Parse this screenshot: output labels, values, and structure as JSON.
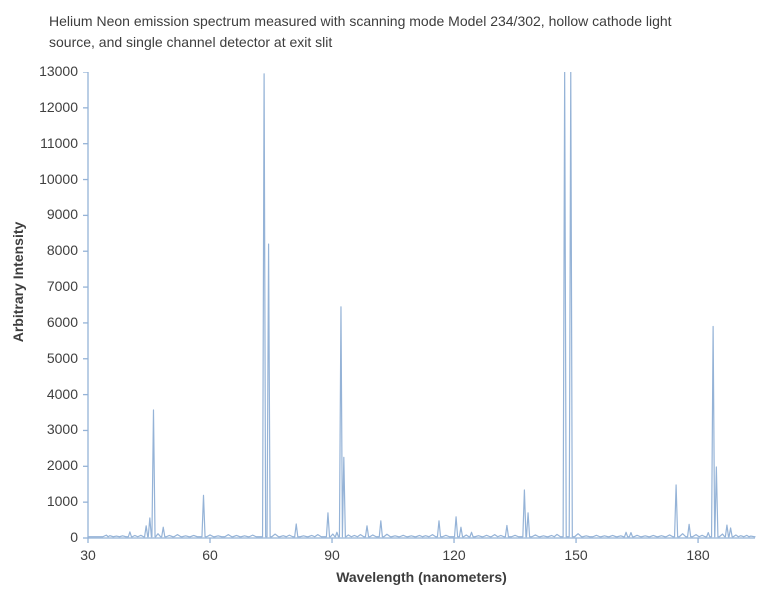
{
  "title": "Helium Neon emission spectrum measured with scanning mode Model 234/302, hollow cathode light source, and single channel detector at exit slit",
  "chart_data": {
    "type": "line",
    "title": "Helium Neon emission spectrum measured with scanning mode Model 234/302, hollow cathode light source, and single channel detector at exit slit",
    "xlabel": "Wavelength (nanometers)",
    "ylabel": "Arbitrary Intensity",
    "xlim": [
      30,
      194
    ],
    "ylim": [
      0,
      13000
    ],
    "x_ticks": [
      30,
      60,
      90,
      120,
      150,
      180
    ],
    "y_ticks": [
      0,
      1000,
      2000,
      3000,
      4000,
      5000,
      6000,
      7000,
      8000,
      9000,
      10000,
      11000,
      12000,
      13000
    ],
    "grid": "off",
    "legend": "none",
    "line_color": "#95B3D7",
    "axis_color": "#95B3D7",
    "text_color": "#3f3f3f",
    "baseline_intensity": 35,
    "clipped_peaks_note": "the two peaks near 147-149 nm exceed the y-axis maximum and are clipped at 13000",
    "peaks": [
      [
        40.3,
        170
      ],
      [
        44.3,
        340
      ],
      [
        45.2,
        560
      ],
      [
        46.1,
        3570
      ],
      [
        48.5,
        300
      ],
      [
        58.4,
        1190
      ],
      [
        73.3,
        12950
      ],
      [
        74.4,
        8200
      ],
      [
        81.2,
        390
      ],
      [
        89.0,
        700
      ],
      [
        91.2,
        160
      ],
      [
        92.2,
        6450
      ],
      [
        92.9,
        2250
      ],
      [
        98.6,
        340
      ],
      [
        102.0,
        480
      ],
      [
        116.3,
        480
      ],
      [
        120.5,
        590
      ],
      [
        121.7,
        300
      ],
      [
        124.3,
        160
      ],
      [
        133.0,
        350
      ],
      [
        137.3,
        1340
      ],
      [
        138.2,
        700
      ],
      [
        147.2,
        13400
      ],
      [
        148.7,
        13400
      ],
      [
        162.3,
        160
      ],
      [
        163.5,
        150
      ],
      [
        174.6,
        1480
      ],
      [
        177.8,
        380
      ],
      [
        182.5,
        150
      ],
      [
        183.7,
        5900
      ],
      [
        184.5,
        1980
      ],
      [
        187.1,
        360
      ],
      [
        188.0,
        280
      ]
    ],
    "noise_bumps": [
      [
        34.5,
        80
      ],
      [
        35.4,
        65
      ],
      [
        37.0,
        55
      ],
      [
        38.5,
        60
      ],
      [
        41.5,
        70
      ],
      [
        43.0,
        75
      ],
      [
        47.2,
        120
      ],
      [
        50.0,
        70
      ],
      [
        52.0,
        95
      ],
      [
        54.0,
        60
      ],
      [
        56.0,
        70
      ],
      [
        60.0,
        85
      ],
      [
        62.0,
        60
      ],
      [
        64.5,
        95
      ],
      [
        66.5,
        70
      ],
      [
        68.5,
        60
      ],
      [
        70.5,
        80
      ],
      [
        76.0,
        110
      ],
      [
        78.0,
        65
      ],
      [
        79.5,
        80
      ],
      [
        83.0,
        60
      ],
      [
        85.0,
        70
      ],
      [
        86.5,
        95
      ],
      [
        90.2,
        110
      ],
      [
        94.0,
        85
      ],
      [
        95.5,
        70
      ],
      [
        97.0,
        95
      ],
      [
        100.0,
        85
      ],
      [
        103.5,
        105
      ],
      [
        105.5,
        60
      ],
      [
        107.5,
        75
      ],
      [
        109.5,
        60
      ],
      [
        111.5,
        70
      ],
      [
        113.0,
        65
      ],
      [
        114.7,
        95
      ],
      [
        118.0,
        75
      ],
      [
        123.0,
        85
      ],
      [
        126.0,
        65
      ],
      [
        128.0,
        75
      ],
      [
        130.0,
        95
      ],
      [
        131.5,
        70
      ],
      [
        135.0,
        75
      ],
      [
        140.0,
        85
      ],
      [
        142.0,
        60
      ],
      [
        144.0,
        70
      ],
      [
        145.3,
        100
      ],
      [
        150.5,
        120
      ],
      [
        152.5,
        60
      ],
      [
        155.0,
        75
      ],
      [
        157.0,
        60
      ],
      [
        159.0,
        70
      ],
      [
        161.0,
        60
      ],
      [
        165.0,
        75
      ],
      [
        167.0,
        60
      ],
      [
        169.0,
        70
      ],
      [
        171.0,
        65
      ],
      [
        173.0,
        85
      ],
      [
        176.2,
        120
      ],
      [
        179.5,
        95
      ],
      [
        181.0,
        75
      ],
      [
        186.0,
        110
      ],
      [
        189.3,
        85
      ],
      [
        190.5,
        65
      ],
      [
        192.0,
        75
      ],
      [
        193.0,
        55
      ]
    ]
  }
}
